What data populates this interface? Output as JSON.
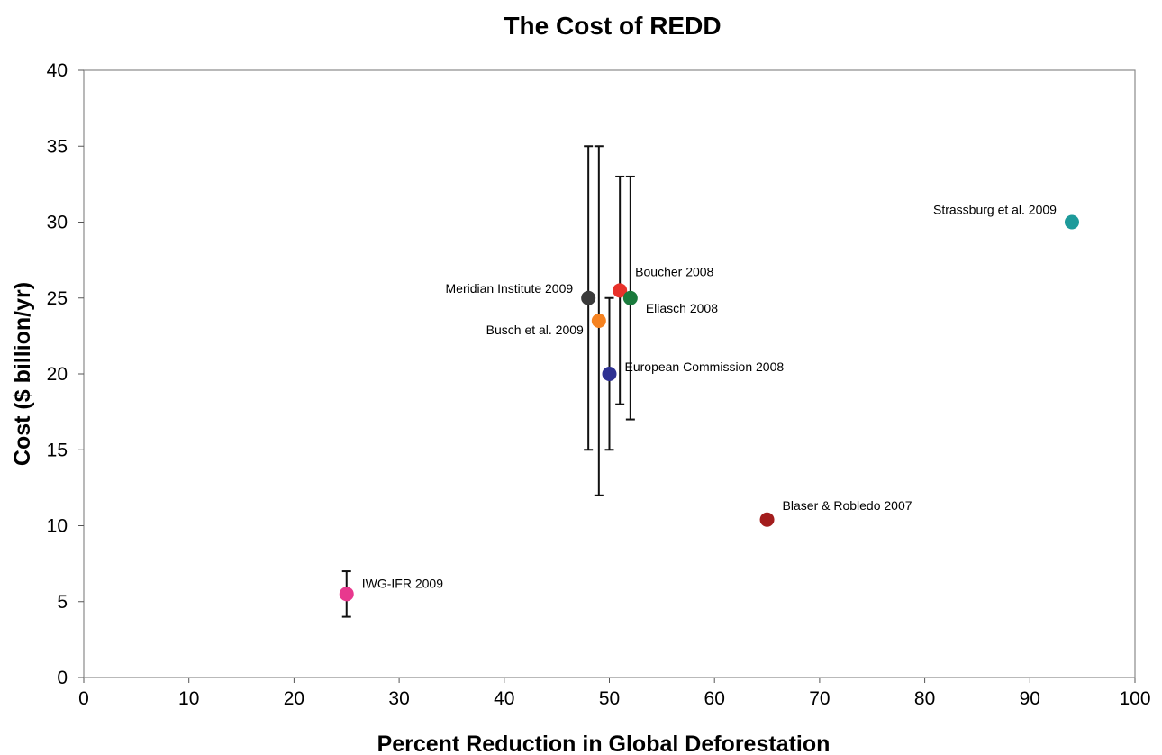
{
  "chart_data": {
    "type": "scatter",
    "title": "The Cost of REDD",
    "xlabel": "Percent Reduction in Global Deforestation",
    "ylabel": "Cost ($ billion/yr)",
    "xlim": [
      0,
      100
    ],
    "ylim": [
      0,
      40
    ],
    "x_ticks": [
      0,
      10,
      20,
      30,
      40,
      50,
      60,
      70,
      80,
      90,
      100
    ],
    "y_ticks": [
      0,
      5,
      10,
      15,
      20,
      25,
      30,
      35,
      40
    ],
    "grid": false,
    "legend": "none",
    "points": [
      {
        "label": "Meridian Institute 2009",
        "x": 48,
        "y": 25,
        "err_low": 15,
        "err_high": 35,
        "color": "#3a3a3a",
        "label_side": "left"
      },
      {
        "label": "Busch et al. 2009",
        "x": 49,
        "y": 23.5,
        "err_low": 12,
        "err_high": 35,
        "color": "#f58220",
        "label_side": "left"
      },
      {
        "label": "European Commission 2008",
        "x": 50,
        "y": 20,
        "err_low": 15,
        "err_high": 25,
        "color": "#2e3192",
        "label_side": "right"
      },
      {
        "label": "Boucher 2008",
        "x": 51,
        "y": 25.5,
        "err_low": 18,
        "err_high": 33,
        "color": "#e8312a",
        "label_side": "right"
      },
      {
        "label": "Eliasch 2008",
        "x": 52,
        "y": 25,
        "err_low": 17,
        "err_high": 33,
        "color": "#1a7a3c",
        "label_side": "right"
      },
      {
        "label": "Strassburg et al. 2009",
        "x": 94,
        "y": 30,
        "color": "#1d9a9a",
        "label_side": "left"
      },
      {
        "label": "Blaser & Robledo 2007",
        "x": 65,
        "y": 10.4,
        "color": "#a31d1d",
        "label_side": "right"
      },
      {
        "label": "IWG-IFR 2009",
        "x": 25,
        "y": 5.5,
        "err_low": 4,
        "err_high": 7,
        "color": "#e8388e",
        "label_side": "right"
      }
    ]
  }
}
